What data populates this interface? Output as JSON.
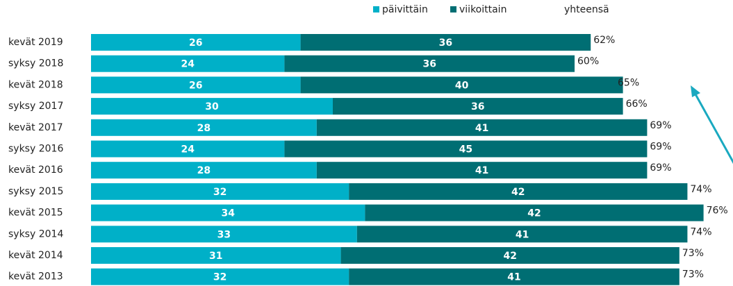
{
  "chart_data": {
    "type": "stacked-bar-horizontal",
    "categories": [
      "kevät 2019",
      "syksy 2018",
      "kevät 2018",
      "syksy 2017",
      "kevät 2017",
      "syksy 2016",
      "kevät 2016",
      "syksy 2015",
      "kevät 2015",
      "syksy 2014",
      "kevät 2014",
      "kevät 2013"
    ],
    "series": [
      {
        "name": "päivittäin",
        "color": "#00b0c8",
        "values": [
          26,
          24,
          26,
          30,
          28,
          24,
          28,
          32,
          34,
          33,
          31,
          32
        ]
      },
      {
        "name": "viikoittain",
        "color": "#006e73",
        "values": [
          36,
          36,
          40,
          36,
          41,
          45,
          41,
          42,
          42,
          41,
          42,
          41
        ]
      }
    ],
    "totals": {
      "name": "yhteensä",
      "values": [
        62,
        60,
        65,
        66,
        69,
        69,
        69,
        74,
        76,
        74,
        73,
        73
      ],
      "value_labels": [
        "62%",
        "60%",
        "65%",
        "66%",
        "69%",
        "69%",
        "69%",
        "74%",
        "76%",
        "74%",
        "73%",
        "73%"
      ]
    },
    "legend": "top-right"
  }
}
